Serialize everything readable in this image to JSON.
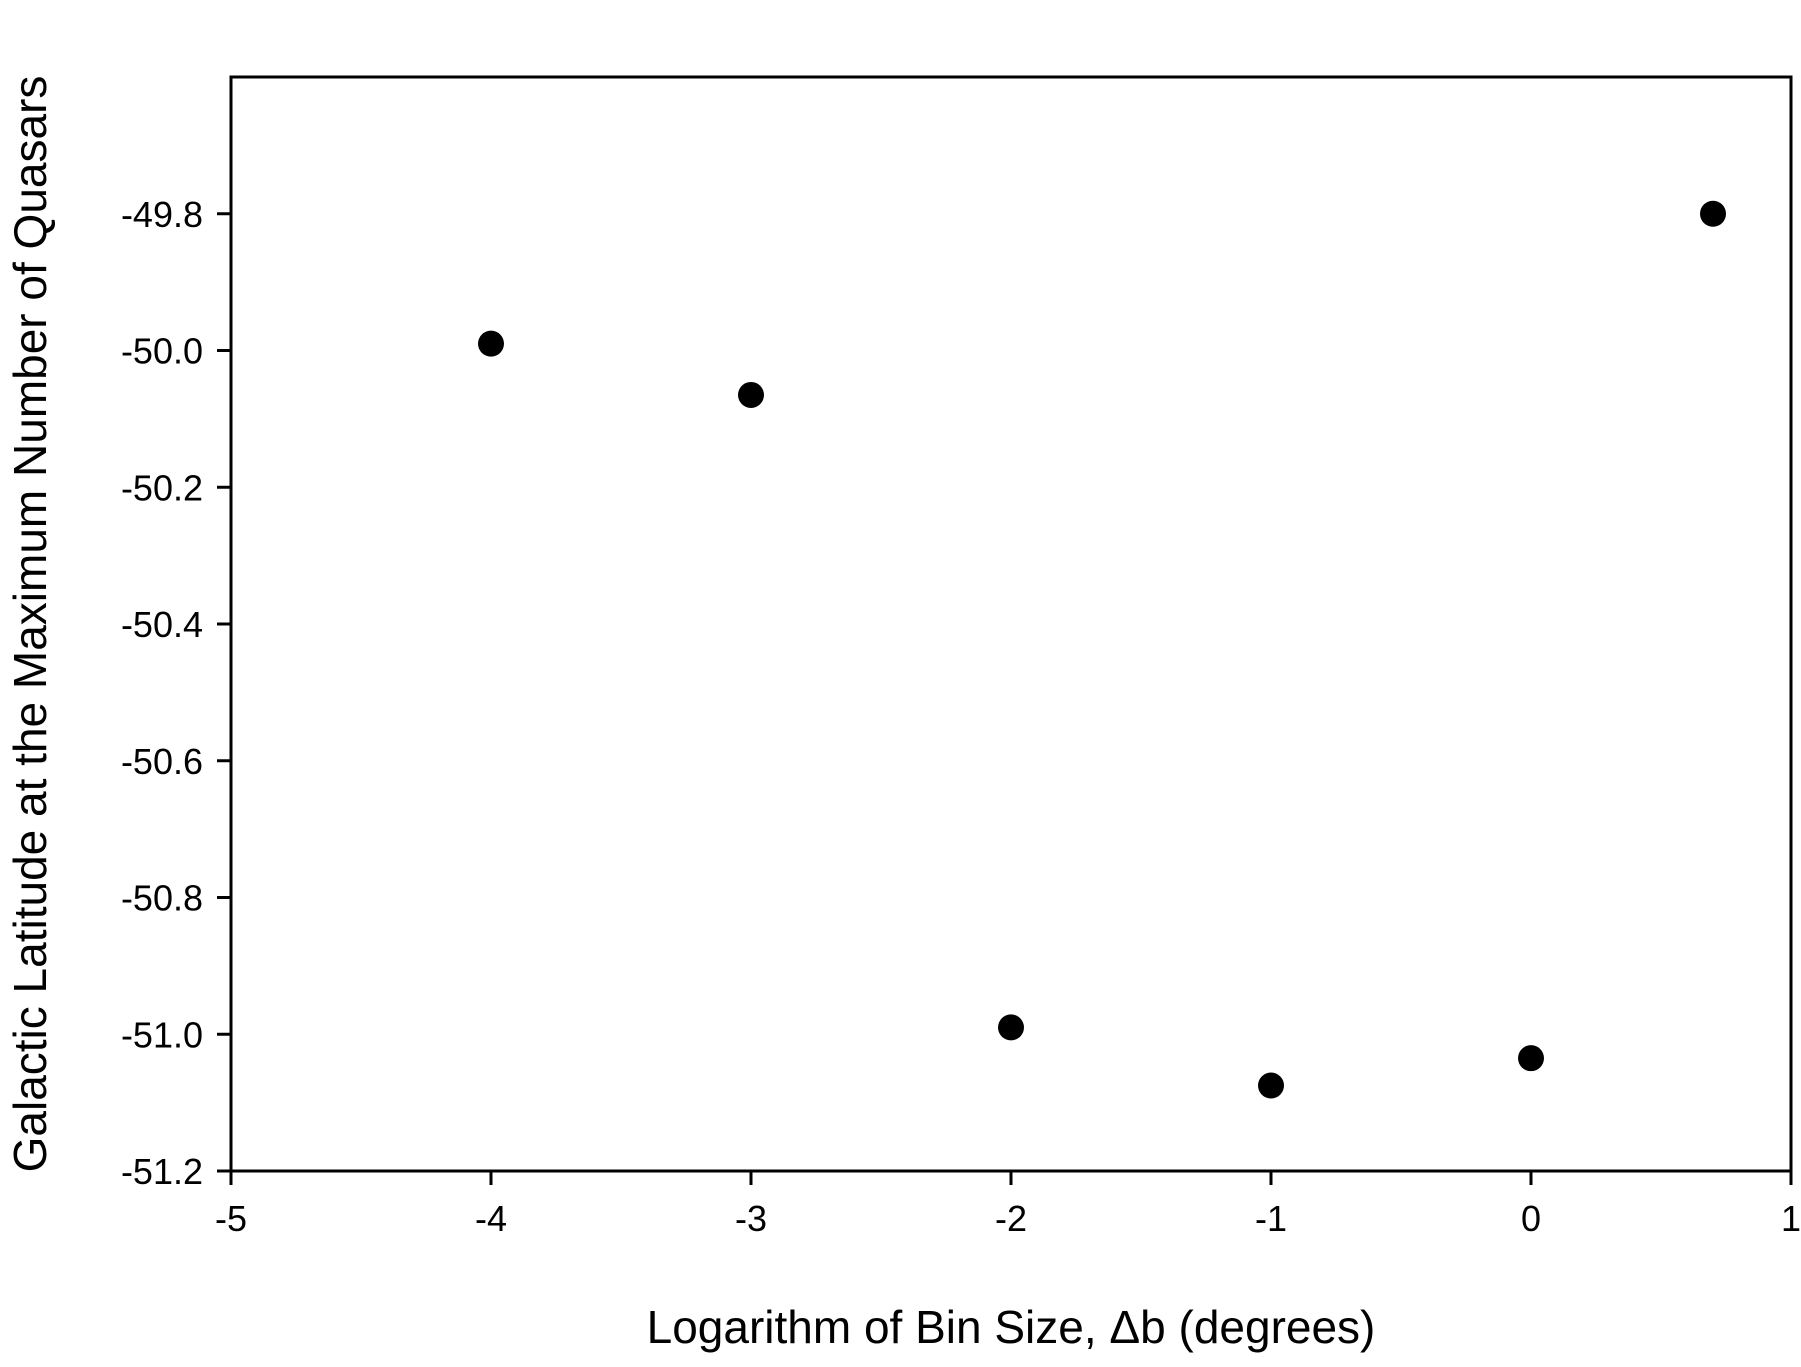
{
  "chart_data": {
    "type": "scatter",
    "title": "",
    "xlabel": "Logarithm of Bin Size, Δb (degrees)",
    "ylabel": "Galactic Latitude at the Maximum Number of Quasars",
    "xlim": [
      -5,
      1
    ],
    "ylim": [
      -51.2,
      -49.6
    ],
    "xticks": [
      -5,
      -4,
      -3,
      -2,
      -1,
      0,
      1
    ],
    "xtick_labels": [
      "-5",
      "-4",
      "-3",
      "-2",
      "-1",
      "0",
      "1"
    ],
    "yticks": [
      -51.2,
      -51.0,
      -50.8,
      -50.6,
      -50.4,
      -50.2,
      -50.0,
      -49.8
    ],
    "ytick_labels": [
      "-51.2",
      "-51.0",
      "-50.8",
      "-50.6",
      "-50.4",
      "-50.2",
      "-50.0",
      "-49.8"
    ],
    "grid": false,
    "legend": "none",
    "marker_color": "#000000",
    "points": [
      {
        "x": -4,
        "y": -49.99
      },
      {
        "x": -3,
        "y": -50.065
      },
      {
        "x": -2,
        "y": -50.99
      },
      {
        "x": -1,
        "y": -51.075
      },
      {
        "x": 0,
        "y": -51.035
      },
      {
        "x": 0.7,
        "y": -49.8
      }
    ]
  }
}
